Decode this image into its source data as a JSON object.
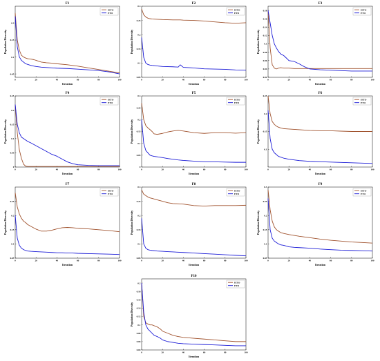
{
  "colors": {
    "ieto": "#a0522d",
    "eto": "#1a1ad6",
    "frame": "#000000"
  },
  "legend_placement": "top-right",
  "chart_data": [
    {
      "type": "line",
      "title": "F1",
      "xlabel": "Iteration",
      "ylabel": "Population Diversity",
      "xlim": [
        0,
        100
      ],
      "ylim": [
        0.04,
        0.25
      ],
      "xticks": [
        "0",
        "20",
        "40",
        "60",
        "80",
        "100"
      ],
      "yticks": [
        {
          "v": 0.05,
          "label": "0.05"
        },
        {
          "v": 0.1,
          "label": "0.1"
        },
        {
          "v": 0.15,
          "label": "0.15"
        },
        {
          "v": 0.2,
          "label": "0.2"
        }
      ],
      "x": [
        0,
        2,
        4,
        6,
        8,
        10,
        12,
        15,
        18,
        20,
        25,
        30,
        35,
        40,
        50,
        60,
        70,
        80,
        90,
        100
      ],
      "series": [
        {
          "name": "IETO",
          "values": [
            0.23,
            0.15,
            0.12,
            0.105,
            0.1,
            0.097,
            0.095,
            0.094,
            0.092,
            0.09,
            0.085,
            0.083,
            0.082,
            0.08,
            0.077,
            0.073,
            0.068,
            0.063,
            0.058,
            0.053
          ]
        },
        {
          "name": "ETO",
          "values": [
            0.22,
            0.13,
            0.1,
            0.09,
            0.085,
            0.08,
            0.078,
            0.075,
            0.073,
            0.072,
            0.07,
            0.069,
            0.068,
            0.067,
            0.066,
            0.064,
            0.062,
            0.06,
            0.056,
            0.05
          ]
        }
      ]
    },
    {
      "type": "line",
      "title": "F2",
      "xlabel": "Iteration",
      "ylabel": "Population Diversity",
      "xlim": [
        0,
        100
      ],
      "ylim": [
        0.05,
        0.3
      ],
      "xticks": [
        "0",
        "20",
        "40",
        "60",
        "80",
        "100"
      ],
      "yticks": [
        {
          "v": 0.05,
          "label": "0.05"
        },
        {
          "v": 0.1,
          "label": "0.1"
        },
        {
          "v": 0.15,
          "label": "0.15"
        },
        {
          "v": 0.2,
          "label": "0.2"
        },
        {
          "v": 0.25,
          "label": "0.25"
        },
        {
          "v": 0.3,
          "label": "0.3"
        }
      ],
      "x": [
        0,
        2,
        4,
        6,
        8,
        10,
        15,
        20,
        30,
        35,
        37,
        40,
        50,
        60,
        70,
        80,
        90,
        100
      ],
      "series": [
        {
          "name": "IETO",
          "values": [
            0.29,
            0.27,
            0.262,
            0.258,
            0.256,
            0.255,
            0.254,
            0.253,
            0.252,
            0.252,
            0.252,
            0.251,
            0.25,
            0.248,
            0.245,
            0.242,
            0.24,
            0.242
          ]
        },
        {
          "name": "ETO",
          "values": [
            0.19,
            0.12,
            0.1,
            0.095,
            0.093,
            0.092,
            0.09,
            0.088,
            0.087,
            0.086,
            0.094,
            0.085,
            0.083,
            0.08,
            0.079,
            0.078,
            0.076,
            0.075
          ]
        }
      ]
    },
    {
      "type": "line",
      "title": "F3",
      "xlabel": "Iteration",
      "ylabel": "Population Diversity",
      "xlim": [
        0,
        100
      ],
      "ylim": [
        0.02,
        0.19
      ],
      "xticks": [
        "0",
        "20",
        "40",
        "60",
        "80",
        "100"
      ],
      "yticks": [
        {
          "v": 0.02,
          "label": "0.02"
        },
        {
          "v": 0.04,
          "label": "0.04"
        },
        {
          "v": 0.06,
          "label": "0.06"
        },
        {
          "v": 0.08,
          "label": "0.08"
        },
        {
          "v": 0.1,
          "label": "0.1"
        },
        {
          "v": 0.12,
          "label": "0.12"
        },
        {
          "v": 0.14,
          "label": "0.14"
        },
        {
          "v": 0.16,
          "label": "0.16"
        },
        {
          "v": 0.18,
          "label": "0.18"
        }
      ],
      "x": [
        0,
        2,
        4,
        6,
        8,
        10,
        12,
        15,
        18,
        20,
        25,
        30,
        35,
        40,
        50,
        60,
        70,
        80,
        90,
        100
      ],
      "series": [
        {
          "name": "IETO",
          "values": [
            0.18,
            0.09,
            0.05,
            0.042,
            0.04,
            0.042,
            0.043,
            0.042,
            0.042,
            0.042,
            0.041,
            0.041,
            0.041,
            0.041,
            0.041,
            0.041,
            0.041,
            0.041,
            0.041,
            0.041
          ]
        },
        {
          "name": "ETO",
          "values": [
            0.18,
            0.15,
            0.12,
            0.1,
            0.09,
            0.082,
            0.076,
            0.072,
            0.065,
            0.06,
            0.058,
            0.052,
            0.045,
            0.04,
            0.038,
            0.037,
            0.036,
            0.035,
            0.035,
            0.035
          ]
        }
      ]
    },
    {
      "type": "line",
      "title": "F4",
      "xlabel": "Iteration",
      "ylabel": "Population Diversity",
      "xlim": [
        0,
        100
      ],
      "ylim": [
        0,
        0.25
      ],
      "xticks": [
        "0",
        "20",
        "40",
        "60",
        "80",
        "100"
      ],
      "yticks": [
        {
          "v": 0,
          "label": "0"
        },
        {
          "v": 0.05,
          "label": "0.05"
        },
        {
          "v": 0.1,
          "label": "0.1"
        },
        {
          "v": 0.15,
          "label": "0.15"
        },
        {
          "v": 0.2,
          "label": "0.2"
        },
        {
          "v": 0.25,
          "label": "0.25"
        }
      ],
      "x": [
        0,
        2,
        4,
        6,
        8,
        10,
        12,
        15,
        20,
        25,
        30,
        35,
        40,
        45,
        50,
        55,
        60,
        70,
        80,
        90,
        100
      ],
      "series": [
        {
          "name": "IETO",
          "values": [
            0.22,
            0.12,
            0.06,
            0.03,
            0.01,
            0.003,
            0.002,
            0.002,
            0.002,
            0.002,
            0.002,
            0.002,
            0.002,
            0.002,
            0.002,
            0.002,
            0.002,
            0.002,
            0.002,
            0.002,
            0.002
          ]
        },
        {
          "name": "ETO",
          "values": [
            0.22,
            0.15,
            0.12,
            0.105,
            0.1,
            0.095,
            0.09,
            0.085,
            0.075,
            0.065,
            0.055,
            0.045,
            0.038,
            0.028,
            0.018,
            0.012,
            0.008,
            0.006,
            0.005,
            0.005,
            0.005
          ]
        }
      ]
    },
    {
      "type": "line",
      "title": "F5",
      "xlabel": "Iteration",
      "ylabel": "Population Diversity",
      "xlim": [
        0,
        100
      ],
      "ylim": [
        0,
        0.3
      ],
      "xticks": [
        "0",
        "20",
        "40",
        "60",
        "80",
        "100"
      ],
      "yticks": [
        {
          "v": 0,
          "label": "0"
        },
        {
          "v": 0.05,
          "label": "0.05"
        },
        {
          "v": 0.1,
          "label": "0.1"
        },
        {
          "v": 0.15,
          "label": "0.15"
        },
        {
          "v": 0.2,
          "label": "0.2"
        },
        {
          "v": 0.25,
          "label": "0.25"
        },
        {
          "v": 0.3,
          "label": "0.3"
        }
      ],
      "x": [
        0,
        2,
        4,
        6,
        8,
        10,
        12,
        15,
        20,
        25,
        30,
        35,
        40,
        50,
        60,
        70,
        80,
        90,
        100
      ],
      "series": [
        {
          "name": "IETO",
          "values": [
            0.27,
            0.2,
            0.175,
            0.165,
            0.158,
            0.15,
            0.14,
            0.138,
            0.142,
            0.148,
            0.152,
            0.155,
            0.152,
            0.145,
            0.142,
            0.145,
            0.145,
            0.143,
            0.145
          ]
        },
        {
          "name": "ETO",
          "values": [
            0.2,
            0.1,
            0.07,
            0.06,
            0.05,
            0.047,
            0.045,
            0.043,
            0.04,
            0.036,
            0.033,
            0.03,
            0.028,
            0.025,
            0.022,
            0.022,
            0.021,
            0.02,
            0.02
          ]
        }
      ]
    },
    {
      "type": "line",
      "title": "F6",
      "xlabel": "Iteration",
      "ylabel": "Population Diversity",
      "xlim": [
        0,
        100
      ],
      "ylim": [
        0.05,
        0.25
      ],
      "xticks": [
        "0",
        "20",
        "40",
        "60",
        "80",
        "100"
      ],
      "yticks": [
        {
          "v": 0.1,
          "label": "0.1"
        },
        {
          "v": 0.15,
          "label": "0.15"
        },
        {
          "v": 0.2,
          "label": "0.2"
        },
        {
          "v": 0.25,
          "label": "0.25"
        }
      ],
      "x": [
        0,
        2,
        4,
        6,
        8,
        10,
        12,
        15,
        20,
        25,
        30,
        40,
        50,
        60,
        70,
        80,
        90,
        100
      ],
      "series": [
        {
          "name": "IETO",
          "values": [
            0.25,
            0.2,
            0.178,
            0.17,
            0.165,
            0.162,
            0.16,
            0.158,
            0.157,
            0.156,
            0.155,
            0.153,
            0.152,
            0.152,
            0.151,
            0.15,
            0.15,
            0.15
          ]
        },
        {
          "name": "ETO",
          "values": [
            0.21,
            0.13,
            0.1,
            0.09,
            0.085,
            0.08,
            0.078,
            0.075,
            0.072,
            0.07,
            0.068,
            0.066,
            0.065,
            0.064,
            0.063,
            0.062,
            0.061,
            0.06
          ]
        }
      ]
    },
    {
      "type": "line",
      "title": "F7",
      "xlabel": "Iteration",
      "ylabel": "Population Diversity",
      "xlim": [
        0,
        100
      ],
      "ylim": [
        0.05,
        0.3
      ],
      "xticks": [
        "0",
        "20",
        "40",
        "60",
        "80",
        "100"
      ],
      "yticks": [
        {
          "v": 0.05,
          "label": "0.05"
        },
        {
          "v": 0.1,
          "label": "0.1"
        },
        {
          "v": 0.15,
          "label": "0.15"
        },
        {
          "v": 0.2,
          "label": "0.2"
        },
        {
          "v": 0.25,
          "label": "0.25"
        }
      ],
      "x": [
        0,
        2,
        4,
        6,
        8,
        10,
        12,
        15,
        20,
        25,
        30,
        35,
        40,
        45,
        50,
        55,
        60,
        70,
        80,
        90,
        100
      ],
      "series": [
        {
          "name": "IETO",
          "values": [
            0.28,
            0.23,
            0.205,
            0.19,
            0.18,
            0.175,
            0.168,
            0.162,
            0.152,
            0.145,
            0.145,
            0.148,
            0.153,
            0.157,
            0.158,
            0.157,
            0.155,
            0.153,
            0.15,
            0.147,
            0.143
          ]
        },
        {
          "name": "ETO",
          "values": [
            0.2,
            0.12,
            0.095,
            0.085,
            0.08,
            0.077,
            0.075,
            0.074,
            0.073,
            0.072,
            0.071,
            0.07,
            0.069,
            0.069,
            0.068,
            0.068,
            0.067,
            0.066,
            0.065,
            0.064,
            0.063
          ]
        }
      ]
    },
    {
      "type": "line",
      "title": "F8",
      "xlabel": "Iteration",
      "ylabel": "Population Diversity",
      "xlim": [
        0,
        100
      ],
      "ylim": [
        0.05,
        0.3
      ],
      "xticks": [
        "0",
        "20",
        "40",
        "60",
        "80",
        "100"
      ],
      "yticks": [
        {
          "v": 0.05,
          "label": "0.05"
        },
        {
          "v": 0.1,
          "label": "0.1"
        },
        {
          "v": 0.15,
          "label": "0.15"
        },
        {
          "v": 0.2,
          "label": "0.2"
        },
        {
          "v": 0.25,
          "label": "0.25"
        },
        {
          "v": 0.3,
          "label": "0.3"
        }
      ],
      "x": [
        0,
        2,
        4,
        6,
        8,
        10,
        15,
        20,
        25,
        30,
        40,
        50,
        60,
        70,
        80,
        90,
        100
      ],
      "series": [
        {
          "name": "IETO",
          "values": [
            0.29,
            0.275,
            0.27,
            0.265,
            0.262,
            0.26,
            0.255,
            0.25,
            0.245,
            0.242,
            0.24,
            0.235,
            0.233,
            0.235,
            0.235,
            0.235,
            0.236
          ]
        },
        {
          "name": "ETO",
          "values": [
            0.19,
            0.1,
            0.085,
            0.08,
            0.078,
            0.077,
            0.075,
            0.074,
            0.073,
            0.072,
            0.07,
            0.068,
            0.066,
            0.064,
            0.062,
            0.06,
            0.058
          ]
        }
      ]
    },
    {
      "type": "line",
      "title": "F9",
      "xlabel": "Iteration",
      "ylabel": "Population Diversity",
      "xlim": [
        0,
        100
      ],
      "ylim": [
        0.05,
        0.3
      ],
      "xticks": [
        "0",
        "20",
        "40",
        "60",
        "80",
        "100"
      ],
      "yticks": [
        {
          "v": 0.05,
          "label": "0.05"
        },
        {
          "v": 0.1,
          "label": "0.1"
        },
        {
          "v": 0.15,
          "label": "0.15"
        },
        {
          "v": 0.2,
          "label": "0.2"
        },
        {
          "v": 0.25,
          "label": "0.25"
        },
        {
          "v": 0.3,
          "label": "0.3"
        }
      ],
      "x": [
        0,
        2,
        4,
        6,
        8,
        10,
        12,
        15,
        20,
        25,
        30,
        40,
        50,
        60,
        70,
        80,
        90,
        100
      ],
      "series": [
        {
          "name": "IETO",
          "values": [
            0.29,
            0.22,
            0.18,
            0.16,
            0.15,
            0.145,
            0.14,
            0.137,
            0.133,
            0.13,
            0.127,
            0.122,
            0.117,
            0.113,
            0.11,
            0.107,
            0.105,
            0.103
          ]
        },
        {
          "name": "ETO",
          "values": [
            0.26,
            0.15,
            0.12,
            0.11,
            0.105,
            0.1,
            0.097,
            0.095,
            0.09,
            0.088,
            0.087,
            0.085,
            0.082,
            0.08,
            0.078,
            0.077,
            0.076,
            0.075
          ]
        }
      ]
    },
    {
      "type": "line",
      "title": "F10",
      "xlabel": "Iteration",
      "ylabel": "Population Diversity",
      "xlim": [
        0,
        100
      ],
      "ylim": [
        0.04,
        0.21
      ],
      "xticks": [
        "0",
        "20",
        "40",
        "60",
        "80",
        "100"
      ],
      "yticks": [
        {
          "v": 0.04,
          "label": "0.04"
        },
        {
          "v": 0.06,
          "label": "0.06"
        },
        {
          "v": 0.08,
          "label": "0.08"
        },
        {
          "v": 0.1,
          "label": "0.1"
        },
        {
          "v": 0.12,
          "label": "0.12"
        },
        {
          "v": 0.14,
          "label": "0.14"
        },
        {
          "v": 0.16,
          "label": "0.16"
        },
        {
          "v": 0.18,
          "label": "0.18"
        },
        {
          "v": 0.2,
          "label": "0.2"
        }
      ],
      "x": [
        0,
        2,
        4,
        6,
        8,
        10,
        12,
        15,
        18,
        20,
        25,
        30,
        35,
        40,
        50,
        60,
        70,
        80,
        90,
        100
      ],
      "series": [
        {
          "name": "IETO",
          "values": [
            0.2,
            0.12,
            0.105,
            0.102,
            0.1,
            0.1,
            0.098,
            0.095,
            0.09,
            0.085,
            0.08,
            0.075,
            0.072,
            0.07,
            0.068,
            0.066,
            0.064,
            0.062,
            0.06,
            0.06
          ]
        },
        {
          "name": "ETO",
          "values": [
            0.2,
            0.13,
            0.1,
            0.09,
            0.085,
            0.08,
            0.075,
            0.072,
            0.068,
            0.064,
            0.06,
            0.058,
            0.056,
            0.055,
            0.054,
            0.053,
            0.052,
            0.051,
            0.05,
            0.05
          ]
        }
      ]
    }
  ]
}
